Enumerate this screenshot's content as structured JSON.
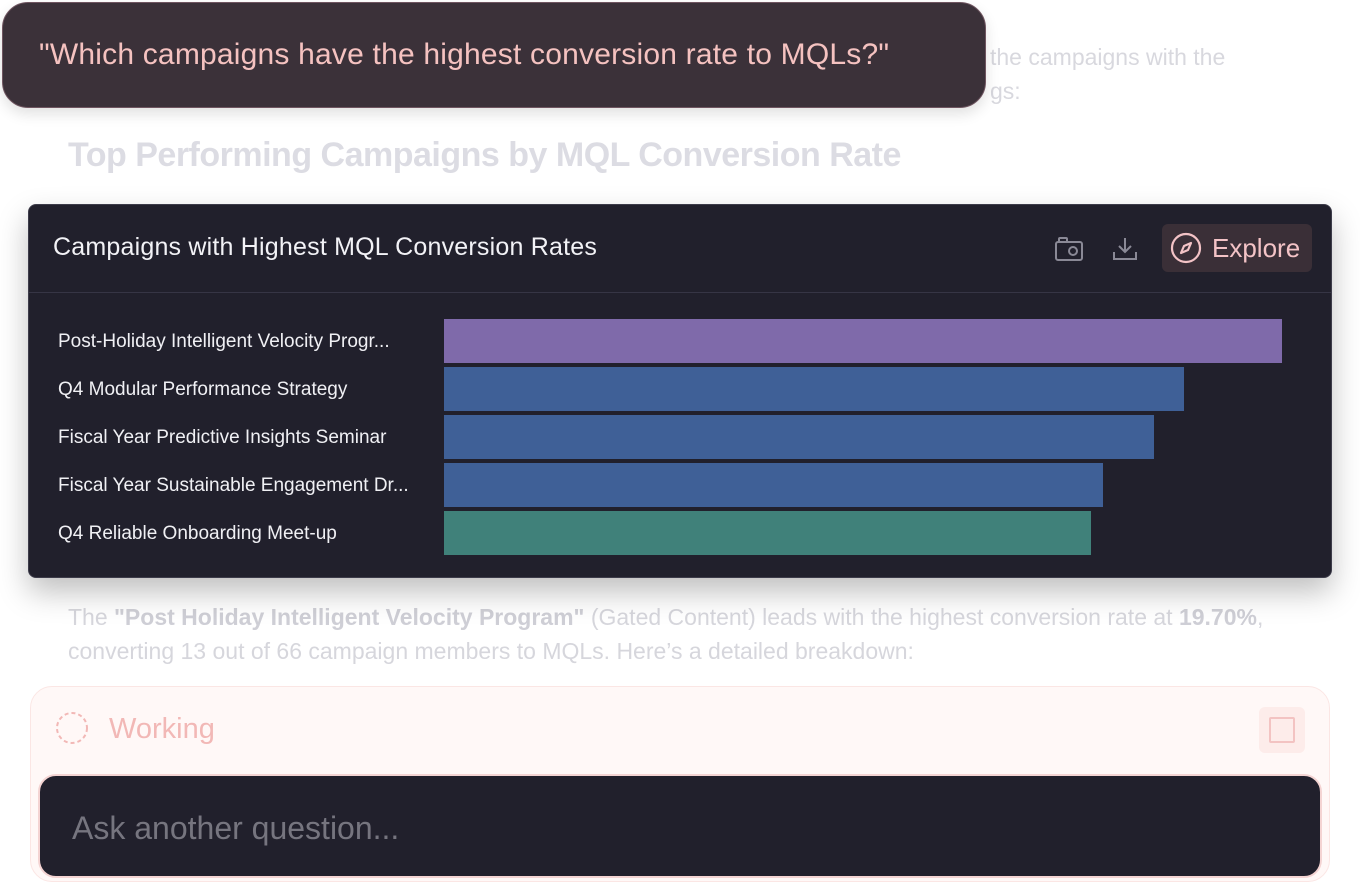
{
  "question": "\"Which campaigns have the highest conversion rate to MQLs?\"",
  "background": {
    "intro_line1": "the campaigns with the",
    "intro_line2": "gs:",
    "heading": "Top Performing Campaigns by MQL Conversion Rate",
    "para_prefix": "The ",
    "para_bold_campaign": "\"Post Holiday Intelligent Velocity Program\"",
    "para_mid": " (Gated Content) leads with the highest conversion rate at ",
    "para_bold_rate": "19.70%",
    "para_suffix": ", converting 13 out of 66 campaign members to MQLs. Here’s a detailed breakdown:"
  },
  "card": {
    "title": "Campaigns with Highest MQL Conversion Rates",
    "snapshot_icon": "camera-icon",
    "download_icon": "download-icon",
    "explore_icon": "compass-icon",
    "explore_label": "Explore"
  },
  "chart_data": {
    "type": "bar",
    "orientation": "horizontal",
    "categories": [
      "Post-Holiday Intelligent Velocity Progr...",
      "Q4 Modular Performance Strategy",
      "Fiscal Year Predictive Insights Seminar",
      "Fiscal Year Sustainable Engagement Dr...",
      "Q4 Reliable Onboarding Meet-up"
    ],
    "values": [
      19.7,
      17.4,
      16.7,
      15.5,
      15.2
    ],
    "colors": [
      "#7f6aaa",
      "#3f6097",
      "#3f6097",
      "#3f6097",
      "#40817a"
    ],
    "xlim": [
      0,
      19.7
    ],
    "grid": false,
    "legend": "none"
  },
  "status": {
    "label": "Working",
    "stop_icon": "stop-icon"
  },
  "ask": {
    "placeholder": "Ask another question..."
  }
}
